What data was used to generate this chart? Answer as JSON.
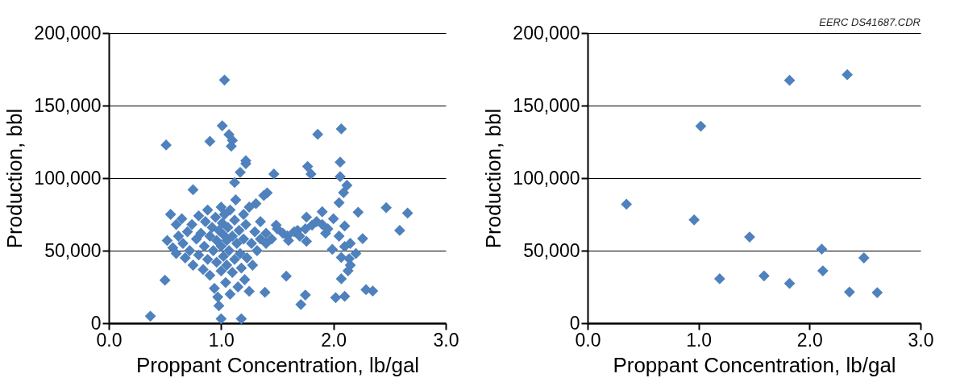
{
  "chart_data": [
    {
      "type": "scatter",
      "xlabel": "Proppant Concentration, lb/gal",
      "ylabel": "Production, bbl",
      "x": [
        1.03,
        0.51,
        1.01,
        0.9,
        1.07,
        1.1,
        1.09,
        1.22,
        1.17,
        1.12,
        0.75,
        0.5,
        0.37,
        1.0,
        1.18,
        2.07,
        1.86,
        1.47,
        1.77,
        1.8,
        2.06,
        2.06,
        2.12,
        2.09,
        2.05,
        2.22,
        2.47,
        2.66,
        2.59,
        2.26,
        1.58,
        1.39,
        1.75,
        1.71,
        2.02,
        2.1,
        2.29,
        2.35,
        2.1,
        2.14,
        2.07,
        2.13,
        2.07,
        1.99,
        1.76,
        1.9,
        1.76,
        1.81,
        1.93,
        1.49,
        1.59,
        1.68,
        1.4,
        1.41,
        1.31,
        1.22,
        0.52,
        0.55,
        0.57,
        0.6,
        0.6,
        0.62,
        0.65,
        0.66,
        0.68,
        0.7,
        0.72,
        0.74,
        0.75,
        0.78,
        0.8,
        0.8,
        0.82,
        0.84,
        0.85,
        0.86,
        0.88,
        0.88,
        0.9,
        0.9,
        0.92,
        0.93,
        0.94,
        0.95,
        0.96,
        0.96,
        0.97,
        0.98,
        0.98,
        1.0,
        1.0,
        1.0,
        1.01,
        1.02,
        1.02,
        1.03,
        1.04,
        1.05,
        1.05,
        1.06,
        1.07,
        1.08,
        1.08,
        1.1,
        1.1,
        1.12,
        1.12,
        1.13,
        1.14,
        1.15,
        1.16,
        1.17,
        1.18,
        1.2,
        1.2,
        1.21,
        1.22,
        1.23,
        1.25,
        1.25,
        1.27,
        1.28,
        1.3,
        1.32,
        1.35,
        1.35,
        1.38,
        1.4,
        1.45,
        1.5,
        1.55,
        1.6,
        1.65,
        1.7,
        1.75,
        1.85,
        1.9,
        1.95,
        2.0,
        2.05,
        2.1,
        2.15,
        2.15,
        2.2
      ],
      "values": [
        167600,
        122800,
        136100,
        125300,
        130000,
        126000,
        122000,
        110000,
        104000,
        97000,
        92000,
        29600,
        4800,
        3000,
        3000,
        133900,
        130200,
        102800,
        108000,
        102800,
        111000,
        101000,
        95000,
        90000,
        83000,
        76500,
        79600,
        75900,
        63900,
        58300,
        32400,
        21300,
        19400,
        12900,
        17600,
        18500,
        23100,
        22200,
        52800,
        44400,
        45300,
        36100,
        30600,
        50900,
        56400,
        76800,
        73100,
        67600,
        62000,
        67600,
        60200,
        64000,
        62000,
        89800,
        82400,
        112000,
        57000,
        75000,
        52000,
        68000,
        48000,
        60000,
        72000,
        55000,
        45000,
        63000,
        50000,
        68000,
        40000,
        58000,
        74000,
        47000,
        62000,
        37000,
        53000,
        70000,
        78000,
        44000,
        60000,
        33000,
        66000,
        50000,
        24000,
        73000,
        57000,
        42000,
        18000,
        64000,
        12000,
        80000,
        53000,
        36000,
        69000,
        61000,
        46000,
        75000,
        28000,
        57000,
        40000,
        66000,
        50000,
        78000,
        20000,
        60000,
        35000,
        71000,
        44000,
        85000,
        55000,
        25000,
        64000,
        48000,
        38000,
        75000,
        58000,
        30000,
        68000,
        45000,
        22000,
        80000,
        55000,
        40000,
        63000,
        50000,
        70000,
        58000,
        88000,
        55000,
        58000,
        65000,
        62000,
        57000,
        63000,
        60000,
        65000,
        70000,
        68000,
        65000,
        72000,
        60000,
        67000,
        55000,
        40000,
        48000
      ],
      "color": "#4f81bd",
      "marker": "diamond",
      "grid": "y",
      "xlim": [
        0,
        3
      ],
      "ylim": [
        0,
        200000
      ],
      "xticks": [
        {
          "value": 0,
          "label": "0.0"
        },
        {
          "value": 1,
          "label": "1.0"
        },
        {
          "value": 2,
          "label": "2.0"
        },
        {
          "value": 3,
          "label": "3.0"
        }
      ],
      "yticks": [
        0,
        {
          "value": 50000,
          "label": "50,000"
        },
        {
          "value": 100000,
          "label": "100,000"
        },
        {
          "value": 150000,
          "label": "150,000"
        },
        {
          "value": 200000,
          "label": "200,000"
        }
      ]
    },
    {
      "type": "scatter",
      "xlabel": "Proppant Concentration, lb/gal",
      "ylabel": "Production, bbl",
      "x": [
        0.35,
        1.02,
        0.96,
        1.19,
        1.46,
        1.59,
        1.82,
        1.82,
        2.34,
        2.11,
        2.12,
        2.49,
        2.36,
        2.61
      ],
      "values": [
        82000,
        135800,
        71200,
        30600,
        59400,
        32600,
        167400,
        27400,
        171300,
        51000,
        36100,
        45000,
        21500,
        21100
      ],
      "color": "#4f81bd",
      "marker": "diamond",
      "grid": "y",
      "xlim": [
        0,
        3
      ],
      "ylim": [
        0,
        200000
      ],
      "xticks": [
        {
          "value": 0,
          "label": "0.0"
        },
        {
          "value": 1,
          "label": "1.0"
        },
        {
          "value": 2,
          "label": "2.0"
        },
        {
          "value": 3,
          "label": "3.0"
        }
      ],
      "yticks": [
        0,
        {
          "value": 50000,
          "label": "50,000"
        },
        {
          "value": 100000,
          "label": "100,000"
        },
        {
          "value": 150000,
          "label": "150,000"
        },
        {
          "value": 200000,
          "label": "200,000"
        }
      ],
      "annotations": [
        "EERC DS41687.CDR"
      ]
    }
  ]
}
